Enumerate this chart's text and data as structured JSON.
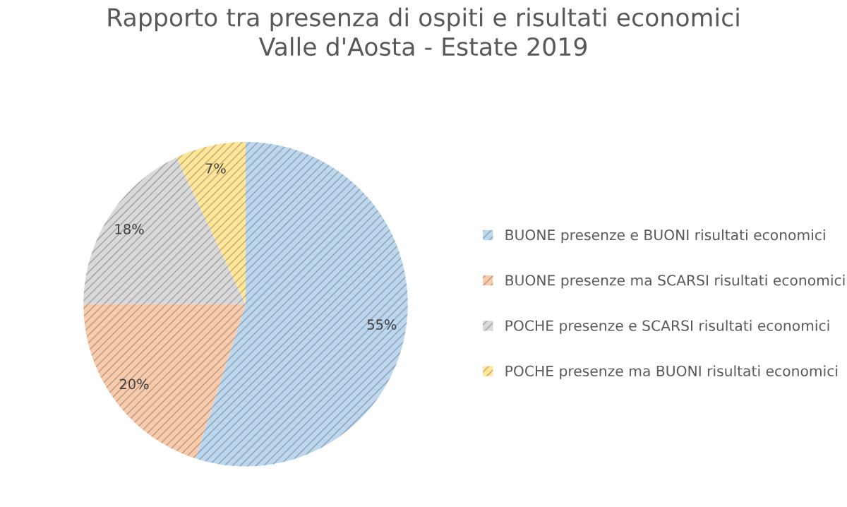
{
  "chart_data": {
    "type": "pie",
    "title": "Rapporto tra presenza di ospiti e risultati economici\nValle d'Aosta - Estate 2019",
    "categories": [
      "BUONE presenze e BUONI risultati economici",
      "BUONE presenze ma SCARSI risultati economici",
      "POCHE presenze e SCARSI risultati economici",
      "POCHE presenze ma BUONI risultati economici"
    ],
    "values": [
      55,
      20,
      18,
      7
    ],
    "value_labels": [
      "55%",
      "20%",
      "18%",
      "7%"
    ],
    "colors": [
      "#bdd7ee",
      "#f8cbad",
      "#d9d9d9",
      "#ffe699"
    ],
    "legend": "right"
  }
}
